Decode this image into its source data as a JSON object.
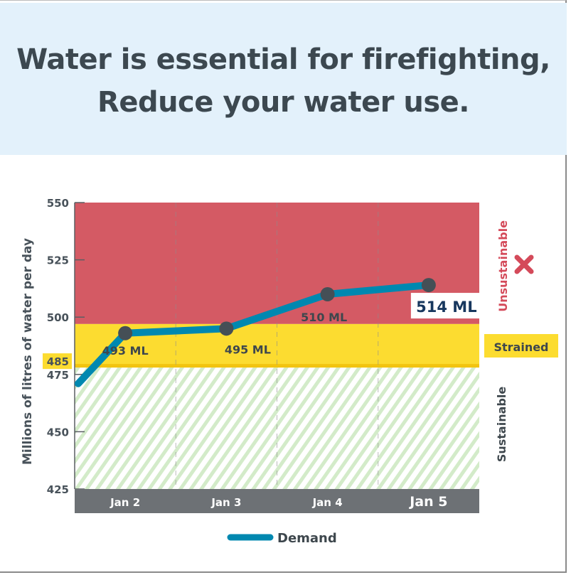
{
  "header": {
    "title_line1": "Water is essential for firefighting,",
    "title_line2": "Reduce your water use."
  },
  "chart_data": {
    "type": "line",
    "ylabel": "Millions of litres of water per day",
    "ylim": [
      425,
      550
    ],
    "yticks": [
      550,
      525,
      500,
      475,
      450,
      425
    ],
    "categories": [
      "Jan 2",
      "Jan 3",
      "Jan 4",
      "Jan 5"
    ],
    "series": [
      {
        "name": "Demand",
        "color": "#0088b0",
        "start_value": 471,
        "values": [
          493,
          495,
          510,
          514
        ],
        "labels": [
          "493 ML",
          "495 ML",
          "510 ML",
          "514 ML"
        ]
      }
    ],
    "zones": [
      {
        "name": "Unsustainable",
        "from": 497,
        "to": 550,
        "color": "#d45a64"
      },
      {
        "name": "Strained",
        "from": 478,
        "to": 497,
        "color": "#fcdc30"
      },
      {
        "name": "Sustainable",
        "from": 425,
        "to": 478,
        "color": "#d3ebc9",
        "pattern": "diagonal-hatch"
      }
    ],
    "threshold_label": "485",
    "unsustainable_icon": "x-mark-icon",
    "legend": {
      "label": "Demand",
      "position": "bottom-center"
    },
    "grid": "vertical-dashed"
  }
}
